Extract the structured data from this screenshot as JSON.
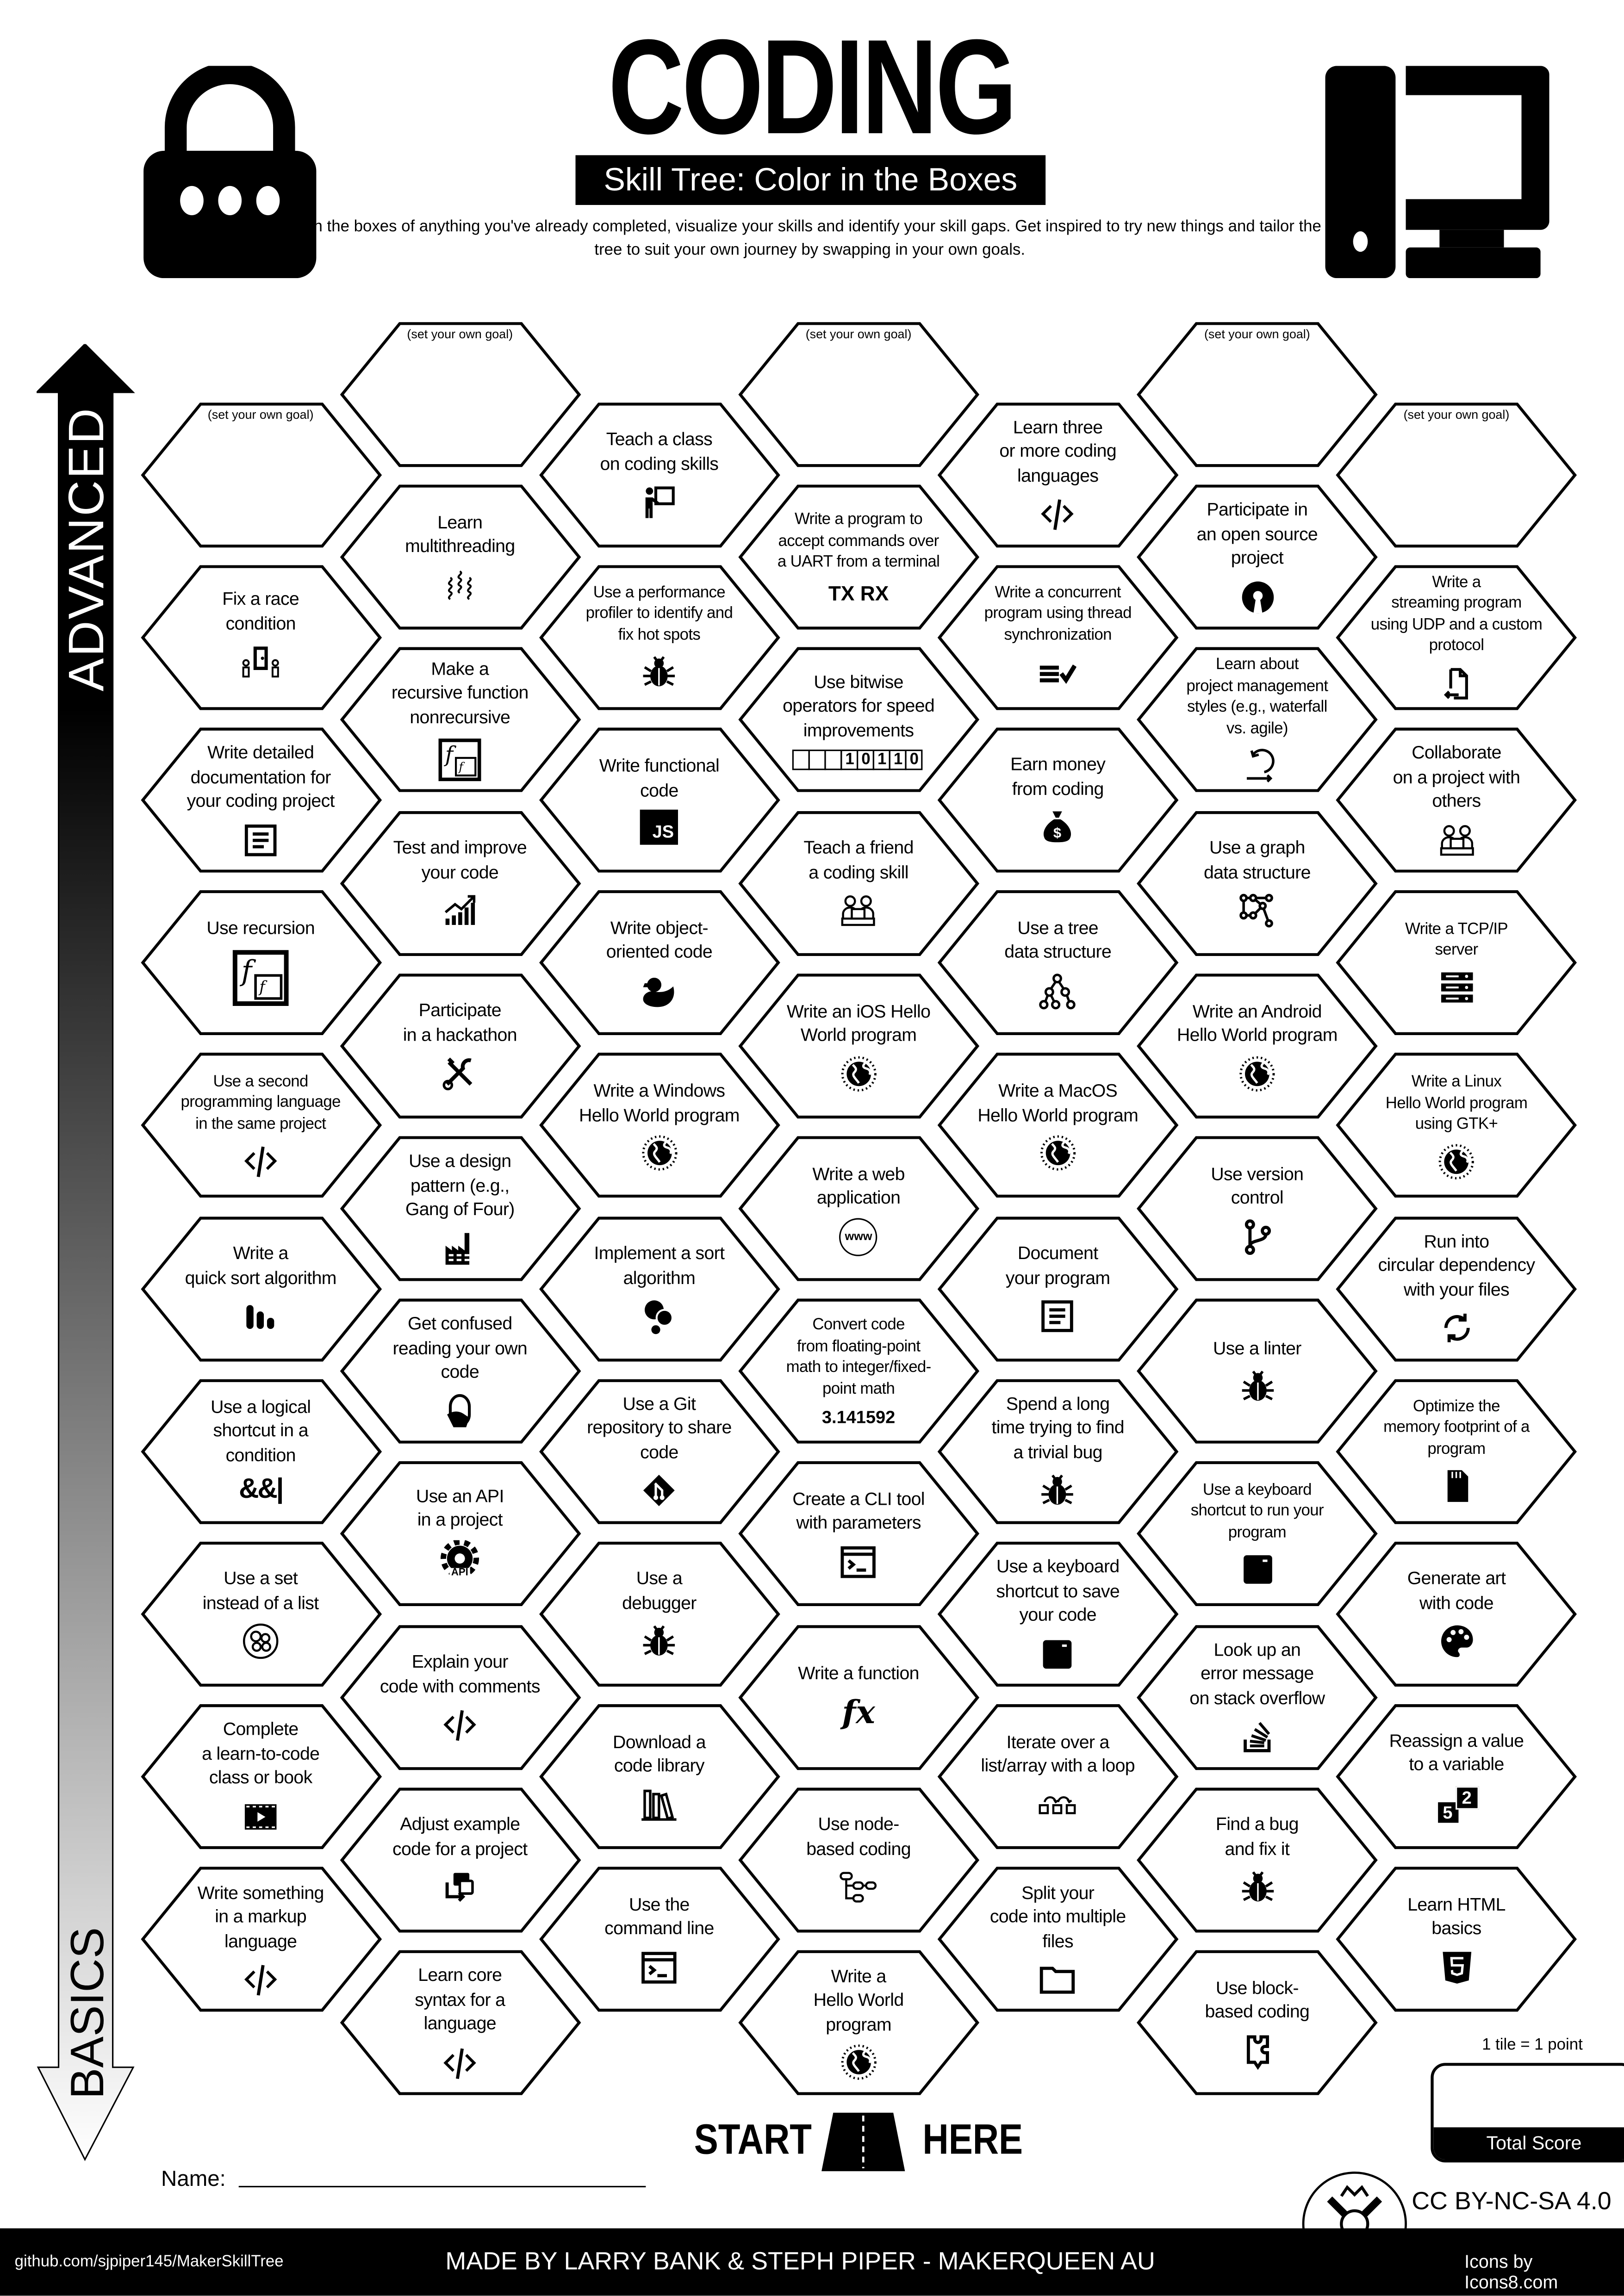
{
  "header": {
    "title": "CODING",
    "subtitle": "Skill Tree: Color in the Boxes",
    "description": "Color in the boxes of anything you've already completed, visualize your skills and identify your skill gaps.  Get inspired to try new things and tailor the skill tree to suit your own journey by swapping in your own goals.",
    "left_icon": "lock-icon",
    "right_icon": "desktop-computer-icon"
  },
  "axis": {
    "top_label": "ADVANCED",
    "bottom_label": "BASICS",
    "colors": {
      "top": "#000000",
      "bottom": "#ffffff"
    }
  },
  "columns": [
    {
      "hexes": [
        {
          "goal": "(set your own goal)"
        },
        {
          "label": "Fix a race\ncondition",
          "icon": "race-condition"
        },
        {
          "label": "Write detailed\ndocumentation for\nyour coding project",
          "icon": "document"
        },
        {
          "label": "Use recursion",
          "icon": "recursion-big"
        },
        {
          "label": "Use a second\nprogramming language\nin the same project",
          "icon": "code",
          "small": true
        },
        {
          "label": "Write a\nquick sort algorithm",
          "icon": "sort-bars"
        },
        {
          "label": "Use a logical\nshortcut in a\ncondition",
          "icon": "logic",
          "icon_text": "&&|"
        },
        {
          "label": "Use a set\ninstead of a list",
          "icon": "set-bubbles"
        },
        {
          "label": "Complete\na learn-to-code\nclass or book",
          "icon": "film"
        },
        {
          "label": "Write something\nin a markup\nlanguage",
          "icon": "code"
        }
      ]
    },
    {
      "hexes": [
        {
          "goal": "(set your own goal)"
        },
        {
          "label": "Learn\nmultithreading",
          "icon": "threads"
        },
        {
          "label": "Make a\nrecursive function\nnonrecursive",
          "icon": "recursion"
        },
        {
          "label": "Test and improve\nyour code",
          "icon": "chart-growth"
        },
        {
          "label": "Participate\nin a hackathon",
          "icon": "tools"
        },
        {
          "label": "Use a design\npattern (e.g.,\nGang of Four)",
          "icon": "factory"
        },
        {
          "label": "Get confused\nreading your own\ncode",
          "icon": "facepalm"
        },
        {
          "label": "Use an API\nin a project",
          "icon": "api",
          "icon_text": "API"
        },
        {
          "label": "Explain your\ncode with comments",
          "icon": "code"
        },
        {
          "label": "Adjust example\ncode for a project",
          "icon": "copy"
        },
        {
          "label": "Learn core\nsyntax for a\nlanguage",
          "icon": "code"
        }
      ]
    },
    {
      "hexes": [
        {
          "label": "Teach a class\non coding skills",
          "icon": "teacher"
        },
        {
          "label": "Use a performance\nprofiler to identify and\nfix hot spots",
          "icon": "bug",
          "small": true
        },
        {
          "label": "Write functional\ncode",
          "icon": "js",
          "icon_text": "JS"
        },
        {
          "label": "Write object-\noriented code",
          "icon": "duck"
        },
        {
          "label": "Write a Windows\nHello World program",
          "icon": "globe"
        },
        {
          "label": "Implement a sort\nalgorithm",
          "icon": "bubbles"
        },
        {
          "label": "Use a Git\nrepository to share\ncode",
          "icon": "git"
        },
        {
          "label": "Use a\ndebugger",
          "icon": "bug"
        },
        {
          "label": "Download a\ncode library",
          "icon": "books"
        },
        {
          "label": "Use the\ncommand line",
          "icon": "terminal"
        }
      ]
    },
    {
      "hexes": [
        {
          "goal": "(set your own goal)"
        },
        {
          "label": "Write a program to\naccept commands over\na UART from a terminal",
          "icon": "txrx",
          "icon_text": "TX RX",
          "small": true
        },
        {
          "label": "Use bitwise\noperators for speed\nimprovements",
          "icon": "bits",
          "icon_text": "10110"
        },
        {
          "label": "Teach a friend\na coding skill",
          "icon": "collaborate"
        },
        {
          "label": "Write an iOS Hello\nWorld program",
          "icon": "globe"
        },
        {
          "label": "Write a web\napplication",
          "icon": "www",
          "icon_text": "www"
        },
        {
          "label": "Convert code\nfrom floating-point\nmath to integer/fixed-\npoint math",
          "icon": "pi",
          "icon_text": "3.141592",
          "small": true
        },
        {
          "label": "Create a CLI tool\nwith parameters",
          "icon": "terminal"
        },
        {
          "label": "Write a function",
          "icon": "fx",
          "icon_text": "fx"
        },
        {
          "label": "Use node-\nbased coding",
          "icon": "nodes"
        },
        {
          "label": "Write a\nHello World\nprogram",
          "icon": "globe"
        }
      ]
    },
    {
      "hexes": [
        {
          "label": "Learn three\nor more coding\nlanguages",
          "icon": "code"
        },
        {
          "label": "Write a concurrent\nprogram using thread\nsynchronization",
          "icon": "list-check",
          "small": true
        },
        {
          "label": "Earn money\nfrom coding",
          "icon": "money-bag"
        },
        {
          "label": "Use a tree\ndata structure",
          "icon": "tree"
        },
        {
          "label": "Write a MacOS\nHello World program",
          "icon": "globe"
        },
        {
          "label": "Document\nyour program",
          "icon": "document"
        },
        {
          "label": "Spend a long\ntime trying to find\na trivial bug",
          "icon": "bug"
        },
        {
          "label": "Use a keyboard\nshortcut to save\nyour code",
          "icon": "key"
        },
        {
          "label": "Iterate over a\nlist/array with a loop",
          "icon": "loop"
        },
        {
          "label": "Split your\ncode into multiple\nfiles",
          "icon": "folder"
        }
      ]
    },
    {
      "hexes": [
        {
          "goal": "(set your own goal)"
        },
        {
          "label": "Participate in\nan open source\nproject",
          "icon": "open-source"
        },
        {
          "label": "Learn about\nproject management\nstyles (e.g., waterfall\nvs. agile)",
          "icon": "agile",
          "small": true
        },
        {
          "label": "Use a graph\ndata structure",
          "icon": "graph"
        },
        {
          "label": "Write an Android\nHello World program",
          "icon": "globe"
        },
        {
          "label": "Use version\ncontrol",
          "icon": "branch"
        },
        {
          "label": "Use a linter",
          "icon": "bug"
        },
        {
          "label": "Use a keyboard\nshortcut to run your\nprogram",
          "icon": "key",
          "small": true
        },
        {
          "label": "Look up an\nerror message\non stack overflow",
          "icon": "stack-overflow"
        },
        {
          "label": "Find a bug\nand fix it",
          "icon": "bug"
        },
        {
          "label": "Use block-\nbased coding",
          "icon": "puzzle"
        }
      ]
    },
    {
      "hexes": [
        {
          "goal": "(set your own goal)"
        },
        {
          "label": "Write a\nstreaming program\nusing UDP and a custom\nprotocol",
          "icon": "file-return",
          "small": true
        },
        {
          "label": "Collaborate\non a project with\nothers",
          "icon": "collaborate"
        },
        {
          "label": "Write a TCP/IP\nserver",
          "icon": "server",
          "small": true
        },
        {
          "label": "Write a Linux\nHello World program\nusing GTK+",
          "icon": "globe",
          "small": true
        },
        {
          "label": "Run into\ncircular dependency\nwith your files",
          "icon": "sync"
        },
        {
          "label": "Optimize the\nmemory footprint of a\nprogram",
          "icon": "sd-card",
          "small": true
        },
        {
          "label": "Generate art\nwith code",
          "icon": "palette"
        },
        {
          "label": "Reassign a value\nto a variable",
          "icon": "reassign",
          "icon_text": "5",
          "icon_text2": "2"
        },
        {
          "label": "Learn HTML\nbasics",
          "icon": "html5"
        }
      ]
    }
  ],
  "start": {
    "left": "START",
    "right": "HERE",
    "icon": "road-icon"
  },
  "name_field": {
    "label": "Name:",
    "value": ""
  },
  "score": {
    "note": "1 tile = 1 point",
    "label": "Total Score",
    "value": ""
  },
  "license": "CC BY-NC-SA 4.0",
  "footer": {
    "github": "github.com/sjpiper145/MakerSkillTree",
    "credits": "MADE BY LARRY BANK & STEPH PIPER  -  MAKERQUEEN AU",
    "icons_credit": "Icons by Icons8.com"
  }
}
